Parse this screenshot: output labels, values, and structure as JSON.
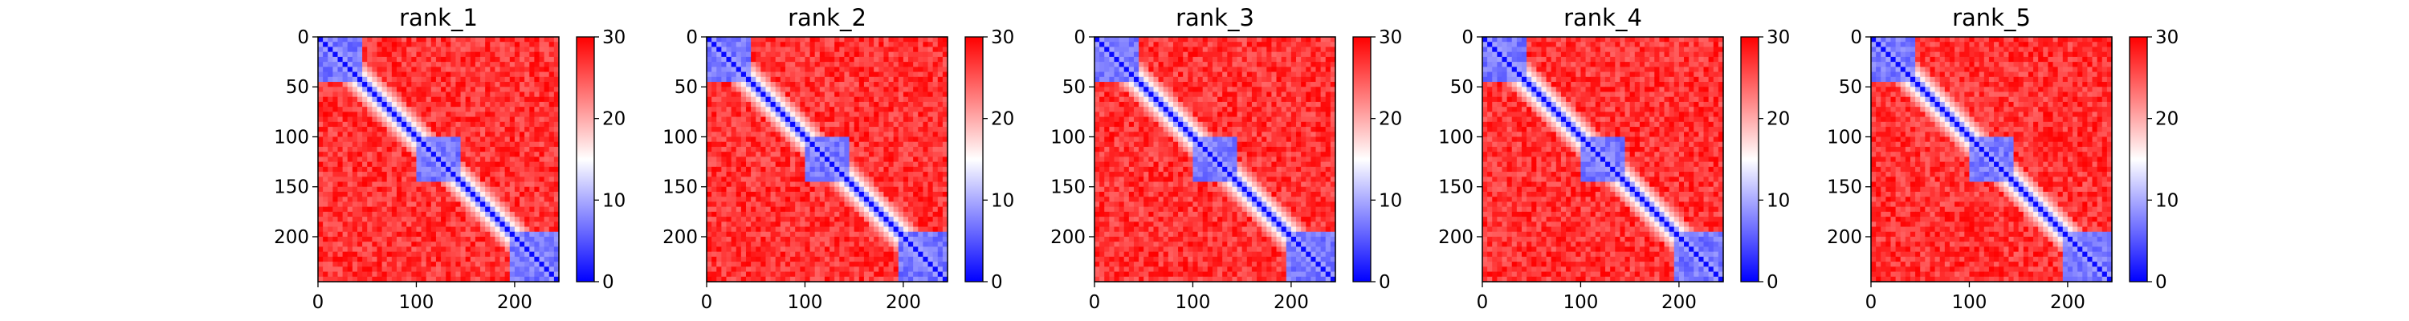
{
  "chart_data": {
    "type": "heatmap",
    "panels": [
      {
        "title": "rank_1"
      },
      {
        "title": "rank_2"
      },
      {
        "title": "rank_3"
      },
      {
        "title": "rank_4"
      },
      {
        "title": "rank_5"
      }
    ],
    "matrix_size": 245,
    "x_ticks": [
      0,
      100,
      200
    ],
    "y_ticks": [
      0,
      50,
      100,
      150,
      200
    ],
    "colorbar": {
      "min": 0,
      "max": 30,
      "ticks": [
        0,
        10,
        20,
        30
      ],
      "colormap": [
        "#0000ff",
        "#ffffff",
        "#ff0000"
      ]
    },
    "low_distance_domains": [
      {
        "start": 0,
        "end": 45
      },
      {
        "start": 100,
        "end": 145
      },
      {
        "start": 195,
        "end": 245
      }
    ]
  }
}
